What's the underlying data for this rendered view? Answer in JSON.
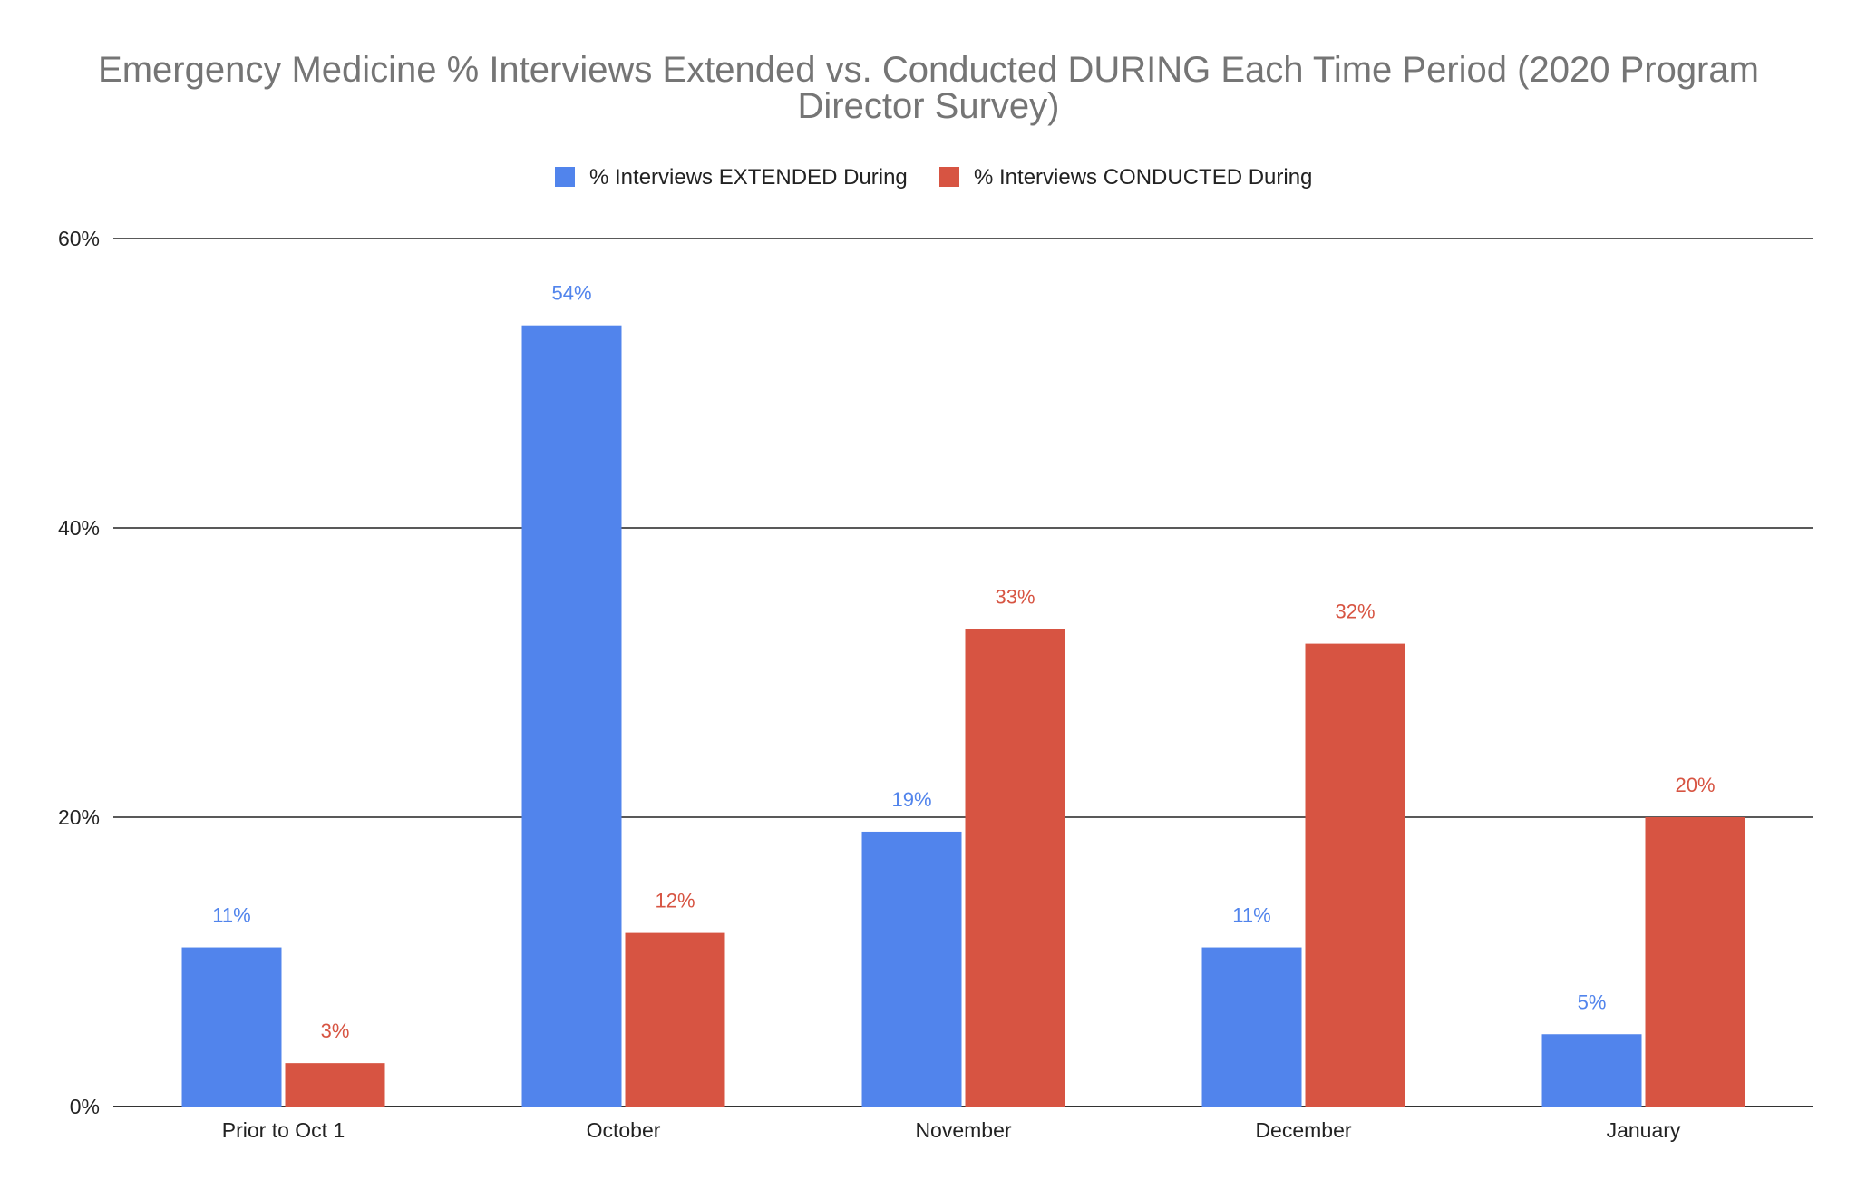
{
  "chart_data": {
    "type": "bar",
    "title_lines": [
      "Emergency Medicine % Interviews Extended vs. Conducted DURING Each Time Period (2020 Program",
      "Director Survey)"
    ],
    "categories": [
      "Prior to Oct 1",
      "October",
      "November",
      "December",
      "January"
    ],
    "series": [
      {
        "name": "% Interviews EXTENDED During",
        "color": "#5184EC",
        "values": [
          11,
          54,
          19,
          11,
          5
        ],
        "labels": [
          "11%",
          "54%",
          "19%",
          "11%",
          "5%"
        ]
      },
      {
        "name": "% Interviews CONDUCTED During",
        "color": "#D75442",
        "values": [
          3,
          12,
          33,
          32,
          20
        ],
        "labels": [
          "3%",
          "12%",
          "33%",
          "32%",
          "20%"
        ]
      }
    ],
    "ylim": [
      0,
      60
    ],
    "yticks": [
      0,
      20,
      40,
      60
    ],
    "ytick_labels": [
      "0%",
      "20%",
      "40%",
      "60%"
    ],
    "xlabel": "",
    "ylabel": "",
    "grid": true,
    "legend_position": "top-center"
  }
}
